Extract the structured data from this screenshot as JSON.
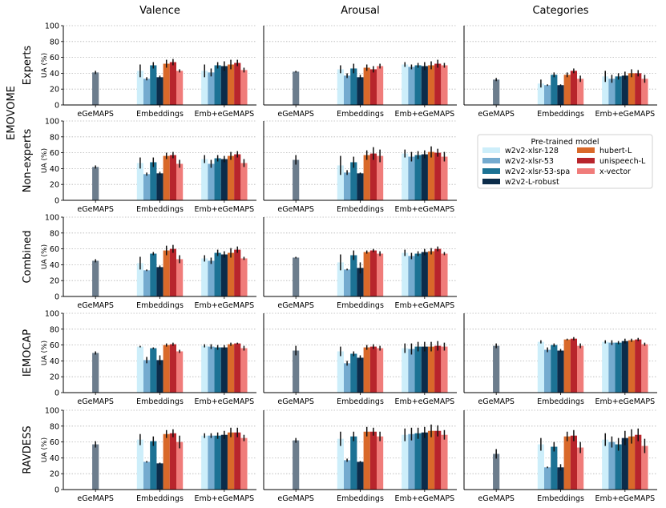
{
  "chart_data": {
    "type": "bar",
    "column_titles": [
      "Valence",
      "Arousal",
      "Categories"
    ],
    "row_labels": [
      {
        "key": "experts",
        "label": "Experts",
        "group": "EMOVOME"
      },
      {
        "key": "nonexperts",
        "label": "Non-experts",
        "group": "EMOVOME"
      },
      {
        "key": "combined",
        "label": "Combined",
        "group": ""
      },
      {
        "key": "iemocap",
        "label": "IEMOCAP",
        "group": ""
      },
      {
        "key": "ravdess",
        "label": "RAVDESS",
        "group": ""
      }
    ],
    "group_label": "EMOVOME",
    "ylabel": "UA (%)",
    "ylim": [
      0,
      100
    ],
    "yticks": [
      0,
      20,
      40,
      60,
      80,
      100
    ],
    "categories": [
      "eGeMAPS",
      "Embeddings",
      "Emb+eGeMAPS"
    ],
    "grid": "horizontal dotted",
    "legend": {
      "title": "Pre-trained model",
      "placement": "right of Non-experts row",
      "entries": [
        {
          "name": "w2v2-xlsr-128",
          "color": "#cdeefa"
        },
        {
          "name": "w2v2-xlsr-53",
          "color": "#75abcf"
        },
        {
          "name": "w2v2-xlsr-53-spa",
          "color": "#1c7294"
        },
        {
          "name": "w2v2-L-robust",
          "color": "#0c2c4a"
        },
        {
          "name": "hubert-L",
          "color": "#d9692a"
        },
        {
          "name": "unispeech-L",
          "color": "#b8252c"
        },
        {
          "name": "x-vector",
          "color": "#f07c7a"
        }
      ]
    },
    "egemaps_color": "#6c7d8d",
    "panels": [
      {
        "row": "experts",
        "col": "Valence",
        "egemaps": [
          41,
          2
        ],
        "embeddings": [
          [
            43,
            8
          ],
          [
            33,
            2
          ],
          [
            50,
            4
          ],
          [
            35,
            2
          ],
          [
            52,
            5
          ],
          [
            54,
            4
          ],
          [
            43,
            2
          ]
        ],
        "combined": [
          [
            43,
            8
          ],
          [
            41,
            5
          ],
          [
            50,
            4
          ],
          [
            49,
            6
          ],
          [
            51,
            6
          ],
          [
            53,
            4
          ],
          [
            44,
            3
          ]
        ]
      },
      {
        "row": "experts",
        "col": "Arousal",
        "egemaps": [
          42,
          1
        ],
        "embeddings": [
          [
            45,
            5
          ],
          [
            37,
            3
          ],
          [
            46,
            6
          ],
          [
            35,
            3
          ],
          [
            47,
            4
          ],
          [
            45,
            4
          ],
          [
            49,
            3
          ]
        ],
        "combined": [
          [
            51,
            3
          ],
          [
            48,
            3
          ],
          [
            50,
            3
          ],
          [
            49,
            5
          ],
          [
            50,
            5
          ],
          [
            52,
            5
          ],
          [
            50,
            3
          ]
        ]
      },
      {
        "row": "experts",
        "col": "Categories",
        "egemaps": [
          32,
          2
        ],
        "embeddings": [
          [
            27,
            5
          ],
          [
            25,
            1
          ],
          [
            38,
            3
          ],
          [
            25,
            1
          ],
          [
            38,
            3
          ],
          [
            43,
            3
          ],
          [
            33,
            4
          ]
        ],
        "combined": [
          [
            36,
            7
          ],
          [
            33,
            5
          ],
          [
            36,
            4
          ],
          [
            37,
            5
          ],
          [
            40,
            5
          ],
          [
            40,
            4
          ],
          [
            33,
            5
          ]
        ]
      },
      {
        "row": "nonexperts",
        "col": "Valence",
        "egemaps": [
          42,
          2
        ],
        "embeddings": [
          [
            47,
            7
          ],
          [
            33,
            2
          ],
          [
            48,
            6
          ],
          [
            34,
            2
          ],
          [
            56,
            4
          ],
          [
            57,
            4
          ],
          [
            46,
            5
          ]
        ],
        "combined": [
          [
            52,
            5
          ],
          [
            46,
            5
          ],
          [
            53,
            4
          ],
          [
            52,
            4
          ],
          [
            56,
            5
          ],
          [
            58,
            4
          ],
          [
            47,
            5
          ]
        ]
      },
      {
        "row": "nonexperts",
        "col": "Arousal",
        "egemaps": [
          51,
          6
        ],
        "embeddings": [
          [
            44,
            12
          ],
          [
            35,
            3
          ],
          [
            48,
            7
          ],
          [
            34,
            1
          ],
          [
            57,
            6
          ],
          [
            59,
            8
          ],
          [
            56,
            8
          ]
        ],
        "combined": [
          [
            59,
            5
          ],
          [
            55,
            6
          ],
          [
            57,
            5
          ],
          [
            58,
            5
          ],
          [
            61,
            7
          ],
          [
            60,
            5
          ],
          [
            55,
            6
          ]
        ]
      },
      {
        "row": "combined",
        "col": "Valence",
        "egemaps": [
          45,
          2
        ],
        "embeddings": [
          [
            42,
            8
          ],
          [
            33,
            1
          ],
          [
            54,
            2
          ],
          [
            37,
            2
          ],
          [
            58,
            6
          ],
          [
            60,
            5
          ],
          [
            47,
            5
          ]
        ],
        "combined": [
          [
            48,
            4
          ],
          [
            45,
            4
          ],
          [
            55,
            4
          ],
          [
            53,
            4
          ],
          [
            55,
            6
          ],
          [
            59,
            4
          ],
          [
            48,
            2
          ]
        ]
      },
      {
        "row": "combined",
        "col": "Arousal",
        "egemaps": [
          49,
          1
        ],
        "embeddings": [
          [
            43,
            10
          ],
          [
            34,
            1
          ],
          [
            52,
            6
          ],
          [
            36,
            7
          ],
          [
            56,
            2
          ],
          [
            58,
            2
          ],
          [
            54,
            3
          ]
        ],
        "combined": [
          [
            55,
            4
          ],
          [
            51,
            4
          ],
          [
            54,
            3
          ],
          [
            56,
            4
          ],
          [
            57,
            4
          ],
          [
            60,
            3
          ],
          [
            54,
            2
          ]
        ]
      },
      {
        "row": "iemocap",
        "col": "Valence",
        "egemaps": [
          50,
          2
        ],
        "embeddings": [
          [
            58,
            1
          ],
          [
            41,
            4
          ],
          [
            56,
            1
          ],
          [
            41,
            6
          ],
          [
            60,
            2
          ],
          [
            61,
            2
          ],
          [
            52,
            2
          ]
        ],
        "combined": [
          [
            59,
            2
          ],
          [
            58,
            3
          ],
          [
            57,
            3
          ],
          [
            57,
            3
          ],
          [
            61,
            2
          ],
          [
            62,
            1
          ],
          [
            56,
            3
          ]
        ]
      },
      {
        "row": "iemocap",
        "col": "Arousal",
        "egemaps": [
          53,
          6
        ],
        "embeddings": [
          [
            52,
            6
          ],
          [
            37,
            3
          ],
          [
            49,
            3
          ],
          [
            44,
            3
          ],
          [
            57,
            3
          ],
          [
            58,
            3
          ],
          [
            56,
            3
          ]
        ],
        "combined": [
          [
            56,
            6
          ],
          [
            55,
            7
          ],
          [
            58,
            6
          ],
          [
            58,
            6
          ],
          [
            58,
            6
          ],
          [
            59,
            6
          ],
          [
            58,
            5
          ]
        ]
      },
      {
        "row": "iemocap",
        "col": "Categories",
        "egemaps": [
          59,
          3
        ],
        "embeddings": [
          [
            64,
            2
          ],
          [
            54,
            3
          ],
          [
            60,
            2
          ],
          [
            53,
            2
          ],
          [
            67,
            1
          ],
          [
            68,
            2
          ],
          [
            59,
            3
          ]
        ],
        "combined": [
          [
            64,
            2
          ],
          [
            63,
            3
          ],
          [
            63,
            2
          ],
          [
            65,
            3
          ],
          [
            66,
            2
          ],
          [
            67,
            2
          ],
          [
            61,
            2
          ]
        ]
      },
      {
        "row": "ravdess",
        "col": "Valence",
        "egemaps": [
          57,
          4
        ],
        "embeddings": [
          [
            63,
            7
          ],
          [
            35,
            1
          ],
          [
            61,
            6
          ],
          [
            33,
            1
          ],
          [
            70,
            5
          ],
          [
            71,
            5
          ],
          [
            60,
            8
          ]
        ],
        "combined": [
          [
            68,
            3
          ],
          [
            68,
            3
          ],
          [
            68,
            4
          ],
          [
            69,
            5
          ],
          [
            72,
            6
          ],
          [
            72,
            6
          ],
          [
            65,
            4
          ]
        ]
      },
      {
        "row": "ravdess",
        "col": "Arousal",
        "egemaps": [
          62,
          3
        ],
        "embeddings": [
          [
            64,
            9
          ],
          [
            37,
            2
          ],
          [
            67,
            6
          ],
          [
            35,
            1
          ],
          [
            73,
            6
          ],
          [
            73,
            5
          ],
          [
            67,
            6
          ]
        ],
        "combined": [
          [
            69,
            8
          ],
          [
            70,
            8
          ],
          [
            71,
            7
          ],
          [
            72,
            7
          ],
          [
            74,
            8
          ],
          [
            74,
            7
          ],
          [
            69,
            6
          ]
        ]
      },
      {
        "row": "ravdess",
        "col": "Categories",
        "egemaps": [
          45,
          6
        ],
        "embeddings": [
          [
            57,
            8
          ],
          [
            28,
            1
          ],
          [
            54,
            6
          ],
          [
            28,
            4
          ],
          [
            67,
            6
          ],
          [
            68,
            7
          ],
          [
            53,
            7
          ]
        ],
        "combined": [
          [
            63,
            8
          ],
          [
            60,
            7
          ],
          [
            57,
            8
          ],
          [
            65,
            9
          ],
          [
            67,
            9
          ],
          [
            69,
            8
          ],
          [
            55,
            9
          ]
        ]
      }
    ]
  }
}
